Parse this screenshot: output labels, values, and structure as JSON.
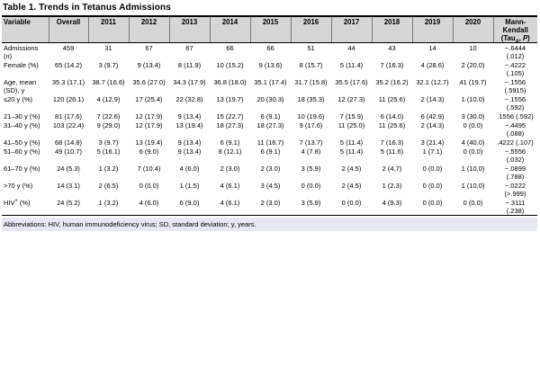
{
  "title": "Table 1. Trends in Tetanus Admissions",
  "footnote": "Abbreviations: HIV, human immunodeficiency virus; SD, standard deviation; y, years.",
  "colors": {
    "header_bg": "#d6d6d6",
    "footnote_bg": "#e8e8f4",
    "border": "#000000"
  },
  "table": {
    "columns": [
      "Variable",
      "Overall",
      "2011",
      "2012",
      "2013",
      "2014",
      "2015",
      "2016",
      "2017",
      "2018",
      "2019",
      "2020",
      "Mann-\nKendall\n(Tau_A_, *P*)"
    ],
    "rows": [
      {
        "label": "Admissions\n(*n*)",
        "values": [
          "459",
          "31",
          "67",
          "67",
          "66",
          "66",
          "51",
          "44",
          "43",
          "14",
          "10"
        ],
        "mk": "−.6444\n(.012)"
      },
      {
        "label": "Female (%)",
        "values": [
          "65 (14.2)",
          "3 (9.7)",
          "9 (13.4)",
          "8 (11.9)",
          "10 (15.2)",
          "9 (13.6)",
          "8 (15.7)",
          "5 (11.4)",
          "7 (16.3)",
          "4 (28.6)",
          "2 (20.0)"
        ],
        "mk": "−.4222\n(.105)"
      },
      {
        "label": "Age, mean\n(SD), y",
        "values": [
          "35.3 (17.1)",
          "38.7 (16.6)",
          "35.6 (27.0)",
          "34.3 (17.9)",
          "36.8 (18.0)",
          "35.1 (17.4)",
          "31.7 (15.8)",
          "35.5 (17.6)",
          "35.2 (16.2)",
          "32.1 (12.7)",
          "41 (19.7)"
        ],
        "mk": "−.1556\n(.5915)"
      },
      {
        "label": "≤20 y (%)",
        "values": [
          "120 (26.1)",
          "4 (12.9)",
          "17 (25.4)",
          "22 (32.8)",
          "13 (19.7)",
          "20 (30.3)",
          "18 (35.3)",
          "12 (27.3)",
          "11 (25.6)",
          "2 (14.3)",
          "1 (10.0)"
        ],
        "mk": "−.1556\n(.592)"
      },
      {
        "label": "21–30 y (%)",
        "values": [
          "81 (17.6)",
          "7 (22.6)",
          "12 (17.9)",
          "9 (13.4)",
          "15 (22.7)",
          "6 (9.1)",
          "10 (19.6)",
          "7 (15.9)",
          "6 (14.0)",
          "6 (42.9)",
          "3 (30.0)"
        ],
        "mk": ".1556 (.592)"
      },
      {
        "label": "31–40 y (%)",
        "values": [
          "103 (22.4)",
          "9 (29.0)",
          "12 (17.9)",
          "13 (19.4)",
          "18 (27.3)",
          "18 (27.3)",
          "9 (17.6)",
          "11 (25.0)",
          "11 (25.6)",
          "2 (14.3)",
          "0 (0.0)"
        ],
        "mk": "−.4495\n(.088)"
      },
      {
        "label": "41–50 y (%)",
        "values": [
          "68 (14.8)",
          "3 (9.7)",
          "13 (19.4)",
          "9 (13.4)",
          "6 (9.1)",
          "11 (16.7)",
          "7 (13.7)",
          "5 (11.4)",
          "7 (16.3)",
          "3 (21.4)",
          "4 (40.0)"
        ],
        "mk": ".4222 (.107)"
      },
      {
        "label": "51–60 y (%)",
        "values": [
          "49 (10.7)",
          "5 (16.1)",
          "6 (9.0)",
          "9 (13.4)",
          "8 (12.1)",
          "6 (9.1)",
          "4 (7.8)",
          "5 (11.4)",
          "5 (11.6)",
          "1 (7.1)",
          "0 (0.0)"
        ],
        "mk": "−.5556\n(.032)"
      },
      {
        "label": "61–70 y (%)",
        "values": [
          "24 (5.3)",
          "1 (3.2)",
          "7 (10.4)",
          "4 (6.0)",
          "2 (3.0)",
          "2 (3.0)",
          "3 (5.9)",
          "2 (4.5)",
          "2 (4.7)",
          "0 (0.0)",
          "1 (10.0)"
        ],
        "mk": "−.0899\n(.788)"
      },
      {
        "label": ">70 y (%)",
        "values": [
          "14 (3.1)",
          "2 (6.5)",
          "0 (0.0)",
          "1 (1.5)",
          "4 (6.1)",
          "3 (4.5)",
          "0 (0.0)",
          "2 (4.5)",
          "1 (2.3)",
          "0 (0.0)",
          "1 (10.0)"
        ],
        "mk": "−.0222\n(>.999)"
      },
      {
        "label": "HIV^+^ (%)",
        "values": [
          "24 (5.2)",
          "1 (3.2)",
          "4 (6.0)",
          "6 (9.0)",
          "4 (6.1)",
          "2 (3.0)",
          "3 (5.9)",
          "0 (0.0)",
          "4 (9.3)",
          "0 (0.0)",
          "0 (0.0)"
        ],
        "mk": "−.3111\n(.238)"
      }
    ]
  }
}
